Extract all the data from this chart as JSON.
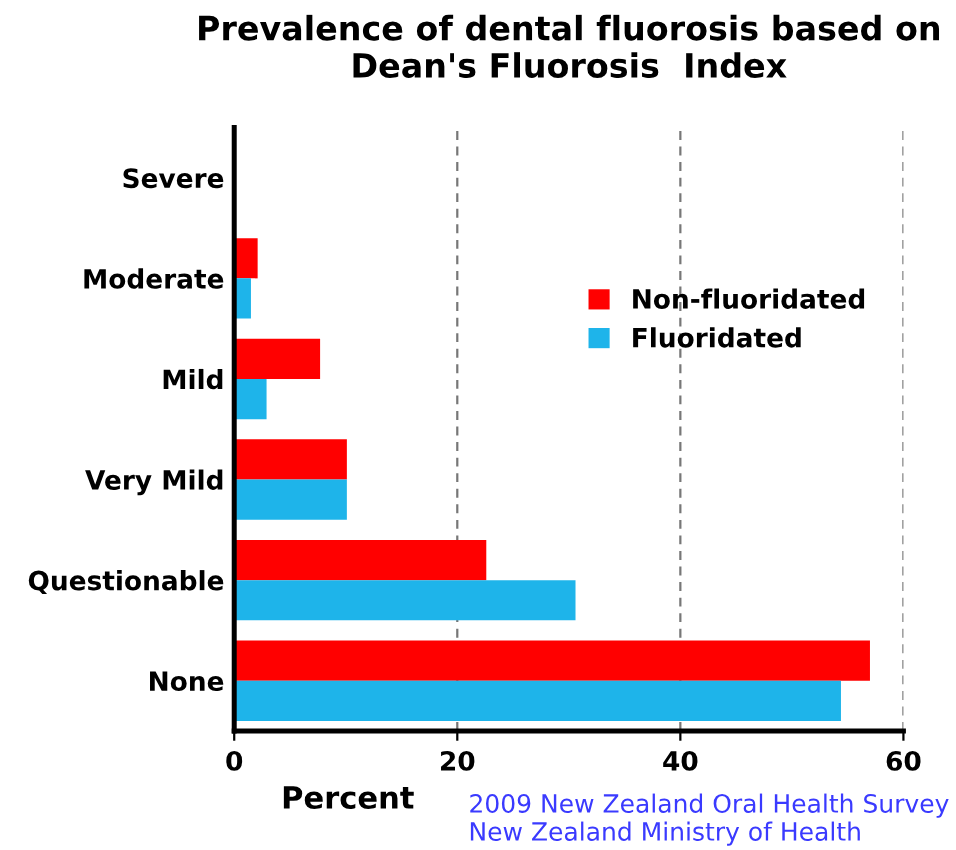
{
  "chart_data": {
    "type": "bar",
    "orientation": "horizontal",
    "title": "Prevalence of dental fluorosis based on\nDean's Fluorosis  Index",
    "xlabel": "Percent",
    "categories": [
      "Severe",
      "Moderate",
      "Mild",
      "Very Mild",
      "Questionable",
      "None"
    ],
    "series": [
      {
        "name": "Non-fluoridated",
        "color": "#ff0000",
        "values": [
          0,
          2.1,
          7.7,
          10.1,
          22.6,
          57.0
        ]
      },
      {
        "name": "Fluoridated",
        "color": "#1eb4ea",
        "values": [
          0,
          1.5,
          2.9,
          10.1,
          30.6,
          54.4
        ]
      }
    ],
    "xlim": [
      0,
      60
    ],
    "xticks": [
      0,
      20,
      40,
      60
    ],
    "grid": "x",
    "legend": "right",
    "annotations": [
      "2009 New Zealand Oral Health Survey\nNew Zealand Ministry of Health"
    ]
  }
}
